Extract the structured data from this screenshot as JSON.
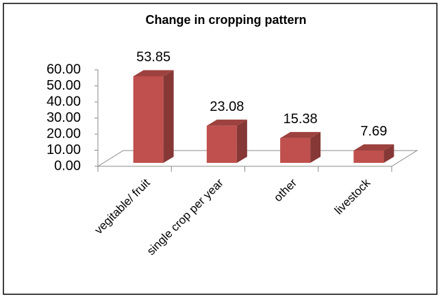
{
  "chart_data": {
    "type": "bar3d",
    "title": "Change in cropping pattern",
    "categories": [
      "vegitable/ fruit",
      "single crop per year",
      "other",
      "livestock"
    ],
    "values": [
      53.85,
      23.08,
      15.38,
      7.69
    ],
    "color": "#c0504d",
    "ylim": [
      0,
      60
    ],
    "yticks": [
      {
        "value": 0,
        "label": "0.00"
      },
      {
        "value": 10,
        "label": "10.00"
      },
      {
        "value": 20,
        "label": "20.00"
      },
      {
        "value": 30,
        "label": "30.00"
      },
      {
        "value": 40,
        "label": "40.00"
      },
      {
        "value": 50,
        "label": "50.00"
      },
      {
        "value": 60,
        "label": "60.00"
      }
    ]
  }
}
